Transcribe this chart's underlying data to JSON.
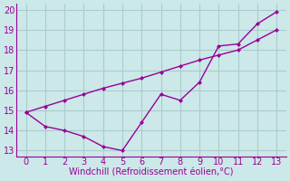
{
  "xlabel": "Windchill (Refroidissement éolien,°C)",
  "background_color": "#cce8e8",
  "grid_color": "#aacccc",
  "line_color": "#990099",
  "x_line1": [
    0,
    1,
    2,
    3,
    4,
    5,
    6,
    7,
    8,
    9,
    10,
    11,
    12,
    13
  ],
  "y_line1": [
    14.9,
    14.2,
    14.0,
    13.7,
    13.2,
    13.0,
    14.4,
    15.8,
    15.5,
    16.4,
    18.2,
    18.3,
    19.3,
    19.9
  ],
  "x_line2": [
    0,
    1,
    2,
    3,
    4,
    5,
    6,
    7,
    8,
    9,
    10,
    11,
    12,
    13
  ],
  "y_line2": [
    14.9,
    15.2,
    15.5,
    15.8,
    16.1,
    16.35,
    16.6,
    16.9,
    17.2,
    17.5,
    17.75,
    18.0,
    18.5,
    19.0
  ],
  "xlim": [
    -0.5,
    13.5
  ],
  "ylim": [
    12.7,
    20.3
  ],
  "xticks": [
    0,
    1,
    2,
    3,
    4,
    5,
    6,
    7,
    8,
    9,
    10,
    11,
    12,
    13
  ],
  "yticks": [
    13,
    14,
    15,
    16,
    17,
    18,
    19,
    20
  ],
  "fontsize_label": 7,
  "fontsize_tick": 7,
  "marker_size": 2.5,
  "line_width": 1.0
}
